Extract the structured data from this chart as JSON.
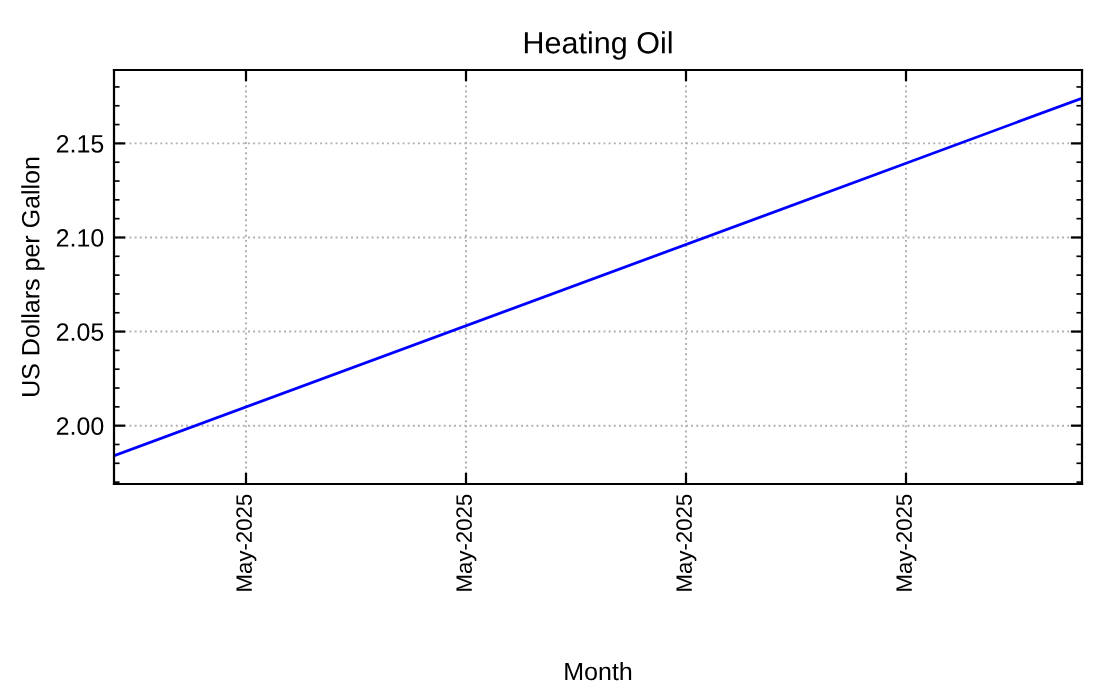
{
  "chart_data": {
    "type": "line",
    "title": "Heating Oil",
    "xlabel": "Month",
    "ylabel": "US Dollars per Gallon",
    "x": [
      "2025-05-02",
      "2025-05-24"
    ],
    "series": [
      {
        "color": "#0000ff",
        "values": [
          1.984,
          2.174
        ]
      }
    ],
    "xlim": [
      "2025-05-02",
      "2025-05-24"
    ],
    "xticks": [
      {
        "value": "2025-05-05",
        "label": "May-2025"
      },
      {
        "value": "2025-05-10",
        "label": "May-2025"
      },
      {
        "value": "2025-05-15",
        "label": "May-2025"
      },
      {
        "value": "2025-05-20",
        "label": "May-2025"
      }
    ],
    "ylim": [
      1.969,
      2.189
    ],
    "yticks": [
      {
        "value": 2.0,
        "label": "2.00"
      },
      {
        "value": 2.05,
        "label": "2.05"
      },
      {
        "value": 2.1,
        "label": "2.10"
      },
      {
        "value": 2.15,
        "label": "2.15"
      }
    ],
    "grid": true,
    "legend": false,
    "marker": "none",
    "line_style": "solid"
  }
}
